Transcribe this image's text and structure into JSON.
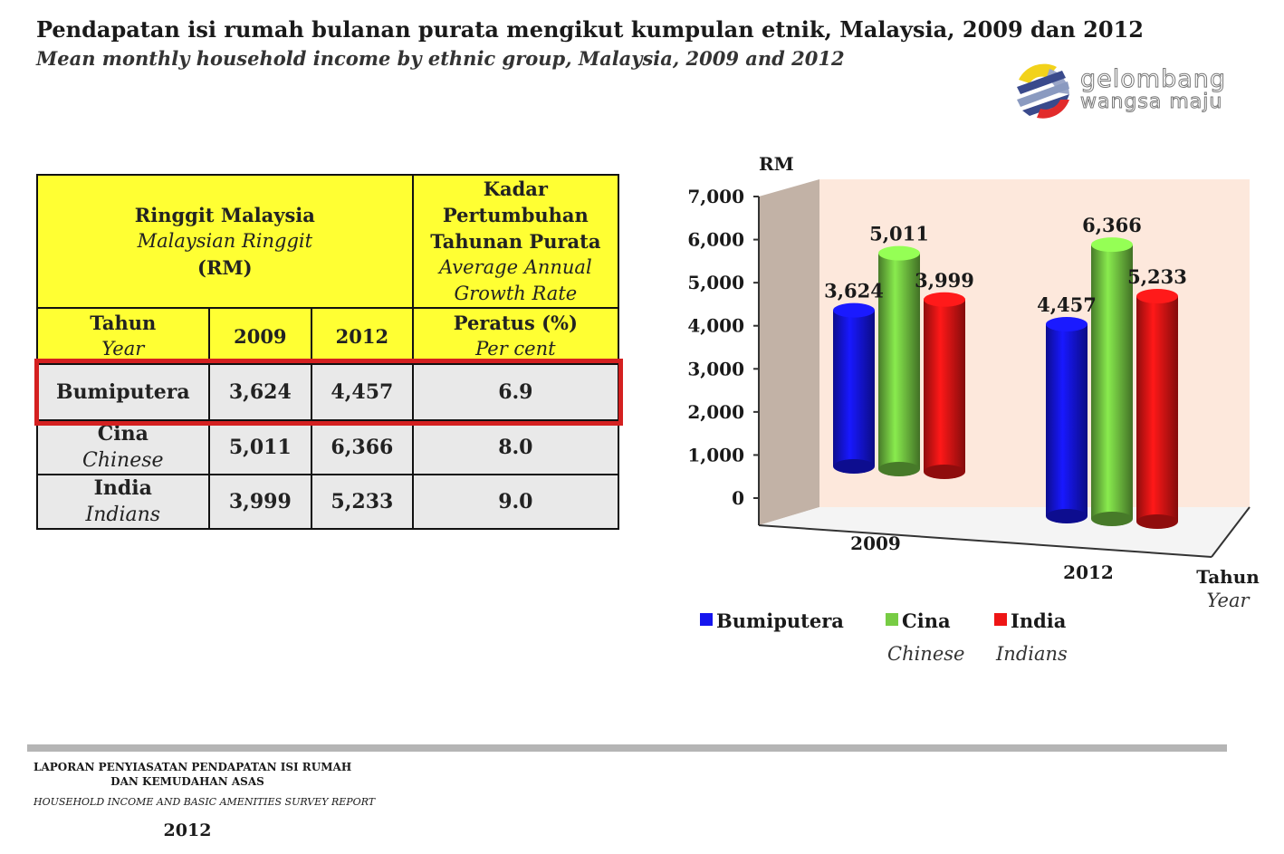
{
  "header": {
    "title": "Pendapatan isi rumah bulanan purata mengikut kumpulan etnik, Malaysia, 2009 dan 2012",
    "subtitle": "Mean monthly household income by ethnic group, Malaysia, 2009 and 2012"
  },
  "logo": {
    "line1": "gelombang",
    "line2": "wangsa maju"
  },
  "table": {
    "rm_header": {
      "line1": "Ringgit Malaysia",
      "line2": "Malaysian Ringgit",
      "line3": "(RM)"
    },
    "growth_header": {
      "line1": "Kadar",
      "line2": "Pertumbuhan",
      "line3": "Tahunan Purata",
      "line4": "Average Annual",
      "line5": "Growth Rate"
    },
    "year_header": {
      "ms": "Tahun",
      "en": "Year"
    },
    "col_2009": "2009",
    "col_2012": "2012",
    "percent_header": {
      "ms": "Peratus",
      "unit": "(%)",
      "en": "Per cent"
    },
    "rows": [
      {
        "ms": "Bumiputera",
        "en": "",
        "v2009": "3,624",
        "v2012": "4,457",
        "growth": "6.9"
      },
      {
        "ms": "Cina",
        "en": "Chinese",
        "v2009": "5,011",
        "v2012": "6,366",
        "growth": "8.0"
      },
      {
        "ms": "India",
        "en": "Indians",
        "v2009": "3,999",
        "v2012": "5,233",
        "growth": "9.0"
      }
    ]
  },
  "chart_data": {
    "type": "bar",
    "categories": [
      "2009",
      "2012"
    ],
    "series": [
      {
        "name": "Bumiputera",
        "values": [
          3624,
          4457
        ],
        "color": "#1515ee"
      },
      {
        "name": "Cina",
        "values": [
          5011,
          6366
        ],
        "color": "#77cc44"
      },
      {
        "name": "India",
        "values": [
          3999,
          5233
        ],
        "color": "#ee1515"
      }
    ],
    "value_labels": [
      [
        "3,624",
        "4,457"
      ],
      [
        "5,011",
        "6,366"
      ],
      [
        "3,999",
        "5,233"
      ]
    ],
    "legend_sub": [
      "",
      "Chinese",
      "Indians"
    ],
    "ylabel": "RM",
    "xlabel": "Tahun",
    "xlabel_en": "Year",
    "ylim": [
      0,
      7000
    ],
    "yticks": [
      "0",
      "1,000",
      "2,000",
      "3,000",
      "4,000",
      "5,000",
      "6,000",
      "7,000"
    ],
    "grid": false,
    "legend_position": "bottom"
  },
  "footer": {
    "line1": "LAPORAN PENYIASATAN PENDAPATAN ISI RUMAH",
    "line2": "DAN KEMUDAHAN ASAS",
    "line3": "HOUSEHOLD INCOME AND BASIC AMENITIES SURVEY REPORT",
    "line4": "2012"
  }
}
